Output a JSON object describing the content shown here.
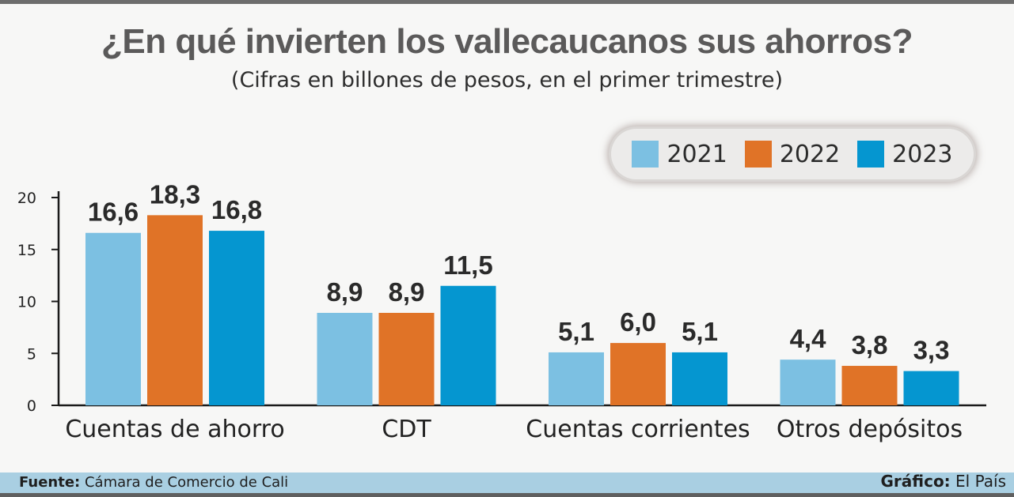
{
  "header": {
    "title": "¿En qué invierten los vallecaucanos sus ahorros?",
    "subtitle": "(Cifras en billones de pesos, en el primer trimestre)"
  },
  "footer": {
    "source_label": "Fuente:",
    "source_text": "Cámara de Comercio de Cali",
    "credit_label": "Gráfico:",
    "credit_text": "El País"
  },
  "colors": {
    "2021": "#7cc0e2",
    "2022": "#e07327",
    "2023": "#0596d0",
    "axis": "#1a1a1a",
    "value_text": "#2a2a2a"
  },
  "chart_data": {
    "type": "bar",
    "title": "¿En qué invierten los vallecaucanos sus ahorros?",
    "subtitle": "(Cifras en billones de pesos, en el primer trimestre)",
    "categories": [
      "Cuentas de ahorro",
      "CDT",
      "Cuentas corrientes",
      "Otros depósitos"
    ],
    "series": [
      {
        "name": "2021",
        "values": [
          16.6,
          8.9,
          5.1,
          4.4
        ],
        "labels": [
          "16,6",
          "8,9",
          "5,1",
          "4,4"
        ]
      },
      {
        "name": "2022",
        "values": [
          18.3,
          8.9,
          6.0,
          3.8
        ],
        "labels": [
          "18,3",
          "8,9",
          "6,0",
          "3,8"
        ]
      },
      {
        "name": "2023",
        "values": [
          16.8,
          11.5,
          5.1,
          3.3
        ],
        "labels": [
          "16,8",
          "11,5",
          "5,1",
          "3,3"
        ]
      }
    ],
    "yticks": [
      "0",
      "5",
      "10",
      "15",
      "20"
    ],
    "ylim": [
      0,
      20
    ],
    "xlabel": "",
    "ylabel": "",
    "grid": false,
    "legend": "top-right"
  }
}
